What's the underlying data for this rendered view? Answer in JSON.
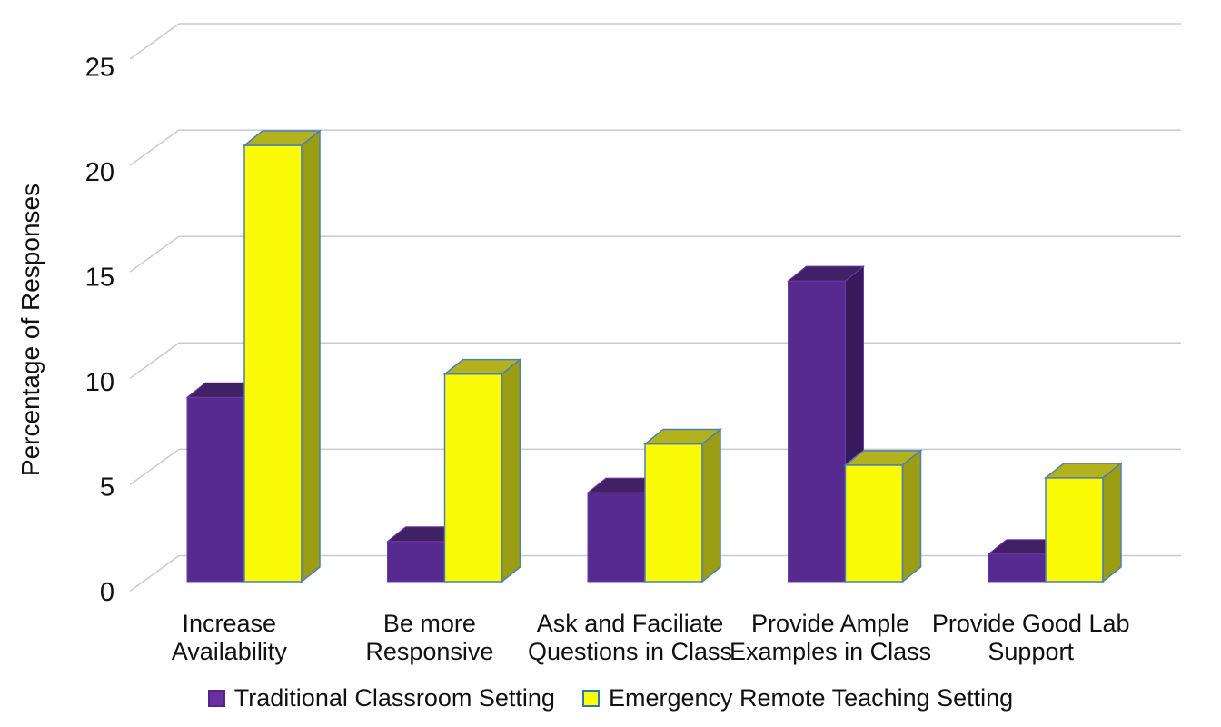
{
  "chart_data": {
    "type": "bar",
    "style": "3d-clustered",
    "ylabel": "Percentage of Responses",
    "ylim": [
      0,
      25
    ],
    "yticks": [
      0,
      5,
      10,
      15,
      20,
      25
    ],
    "grid": true,
    "legend_position": "bottom",
    "categories": [
      "Increase Availability",
      "Be more Responsive",
      "Ask and Faciliate Questions in Class",
      "Provide Ample Examples in Class",
      "Provide Good Lab Support"
    ],
    "category_label_lines": [
      [
        "Increase",
        "Availability"
      ],
      [
        "Be more",
        "Responsive"
      ],
      [
        "Ask and Faciliate",
        "Questions in Class"
      ],
      [
        "Provide Ample",
        "Examples in Class"
      ],
      [
        "Provide Good Lab",
        "Support"
      ]
    ],
    "series": [
      {
        "name": "Traditional Classroom Setting",
        "values": [
          8.7,
          1.9,
          4.2,
          14.2,
          1.3
        ],
        "colors": {
          "front": "#562A8E",
          "top": "#412066",
          "side": "#381A5C",
          "stroke": "#6C3AA6",
          "legend_fill": "#6B2FA0",
          "legend_border": "#53268B"
        }
      },
      {
        "name": "Emergency Remote Teaching Setting",
        "values": [
          20.6,
          9.8,
          6.5,
          5.5,
          4.9
        ],
        "colors": {
          "front": "#FBFB06",
          "top": "#B1B21C",
          "side": "#9B9D13",
          "stroke": "#4E7DB8",
          "legend_fill": "#FFFF00",
          "legend_border": "#2E75B6"
        }
      }
    ]
  },
  "colors": {
    "background": "#FFFFFF",
    "gridline": "#C5CAD3",
    "text": "#111111"
  }
}
